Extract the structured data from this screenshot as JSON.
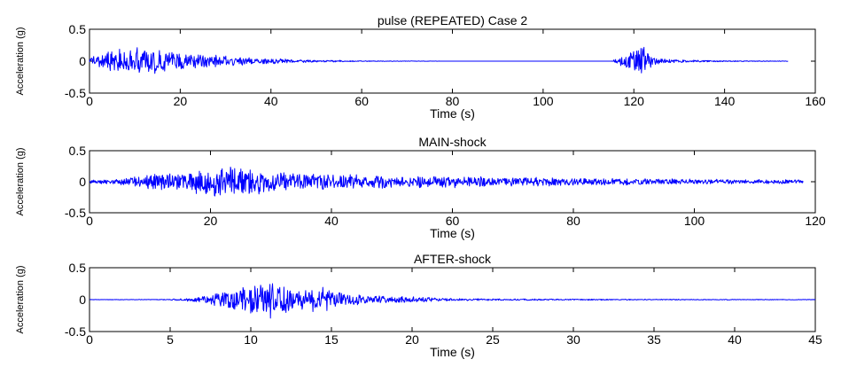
{
  "chart_data": [
    {
      "type": "line",
      "title": "pulse (REPEATED) Case 2",
      "xlabel": "Time (s)",
      "ylabel": "Acceleration (g)",
      "xlim": [
        0,
        160
      ],
      "ylim": [
        -0.5,
        0.5
      ],
      "xticks": [
        "0",
        "20",
        "40",
        "60",
        "80",
        "100",
        "120",
        "140",
        "160"
      ],
      "yticks": [
        "0.5",
        "0",
        "-0.5"
      ],
      "grid": false,
      "color": "#0000ff",
      "series": [
        {
          "x": [
            0,
            2,
            4,
            6,
            8,
            10,
            11,
            12,
            14,
            16,
            18,
            20,
            24,
            28,
            32,
            36,
            40,
            45,
            50,
            55,
            60,
            80,
            100,
            115,
            117,
            118,
            119,
            120,
            121,
            122,
            123,
            124,
            126,
            128,
            130,
            135,
            140,
            145,
            150,
            154
          ],
          "envelope": [
            0.06,
            0.1,
            0.16,
            0.2,
            0.22,
            0.25,
            0.28,
            0.24,
            0.2,
            0.18,
            0.16,
            0.14,
            0.12,
            0.1,
            0.08,
            0.06,
            0.05,
            0.03,
            0.02,
            0.015,
            0.008,
            0,
            0,
            0,
            0.08,
            0.18,
            0.22,
            0.2,
            0.32,
            0.28,
            0.16,
            0.08,
            0.05,
            0.035,
            0.025,
            0.015,
            0.01,
            0.008,
            0.005,
            0.004
          ]
        }
      ]
    },
    {
      "type": "line",
      "title": "MAIN-shock",
      "xlabel": "Time (s)",
      "ylabel": "Acceleration (g)",
      "xlim": [
        0,
        120
      ],
      "ylim": [
        -0.5,
        0.5
      ],
      "xticks": [
        "0",
        "20",
        "40",
        "60",
        "80",
        "100",
        "120"
      ],
      "yticks": [
        "0.5",
        "0",
        "-0.5"
      ],
      "grid": false,
      "color": "#0000ff",
      "series": [
        {
          "x": [
            0,
            5,
            8,
            10,
            15,
            18,
            20,
            22,
            24,
            26,
            28,
            30,
            35,
            40,
            45,
            50,
            55,
            60,
            70,
            80,
            90,
            100,
            110,
            118
          ],
          "envelope": [
            0.03,
            0.05,
            0.1,
            0.14,
            0.17,
            0.2,
            0.24,
            0.28,
            0.32,
            0.26,
            0.22,
            0.19,
            0.16,
            0.13,
            0.12,
            0.11,
            0.1,
            0.1,
            0.08,
            0.07,
            0.055,
            0.045,
            0.04,
            0.035
          ]
        }
      ]
    },
    {
      "type": "line",
      "title": "AFTER-shock",
      "xlabel": "Time (s)",
      "ylabel": "Acceleration (g)",
      "xlim": [
        0,
        45
      ],
      "ylim": [
        -0.5,
        0.5
      ],
      "xticks": [
        "0",
        "5",
        "10",
        "15",
        "20",
        "25",
        "30",
        "35",
        "40",
        "45"
      ],
      "yticks": [
        "0.5",
        "0",
        "-0.5"
      ],
      "grid": false,
      "color": "#0000ff",
      "series": [
        {
          "x": [
            0,
            4,
            5,
            6,
            7,
            8,
            9,
            10,
            10.7,
            11,
            11.5,
            12,
            12.5,
            13,
            13.5,
            14,
            14.5,
            15,
            16,
            17,
            18,
            19,
            20,
            21,
            22,
            25,
            30,
            35,
            40,
            45
          ],
          "envelope": [
            0.003,
            0.004,
            0.01,
            0.03,
            0.06,
            0.12,
            0.2,
            0.26,
            0.36,
            0.3,
            0.33,
            0.28,
            0.22,
            0.2,
            0.18,
            0.25,
            0.2,
            0.14,
            0.1,
            0.08,
            0.07,
            0.06,
            0.05,
            0.04,
            0.02,
            0.015,
            0.01,
            0.008,
            0.006,
            0.005
          ]
        }
      ]
    }
  ]
}
